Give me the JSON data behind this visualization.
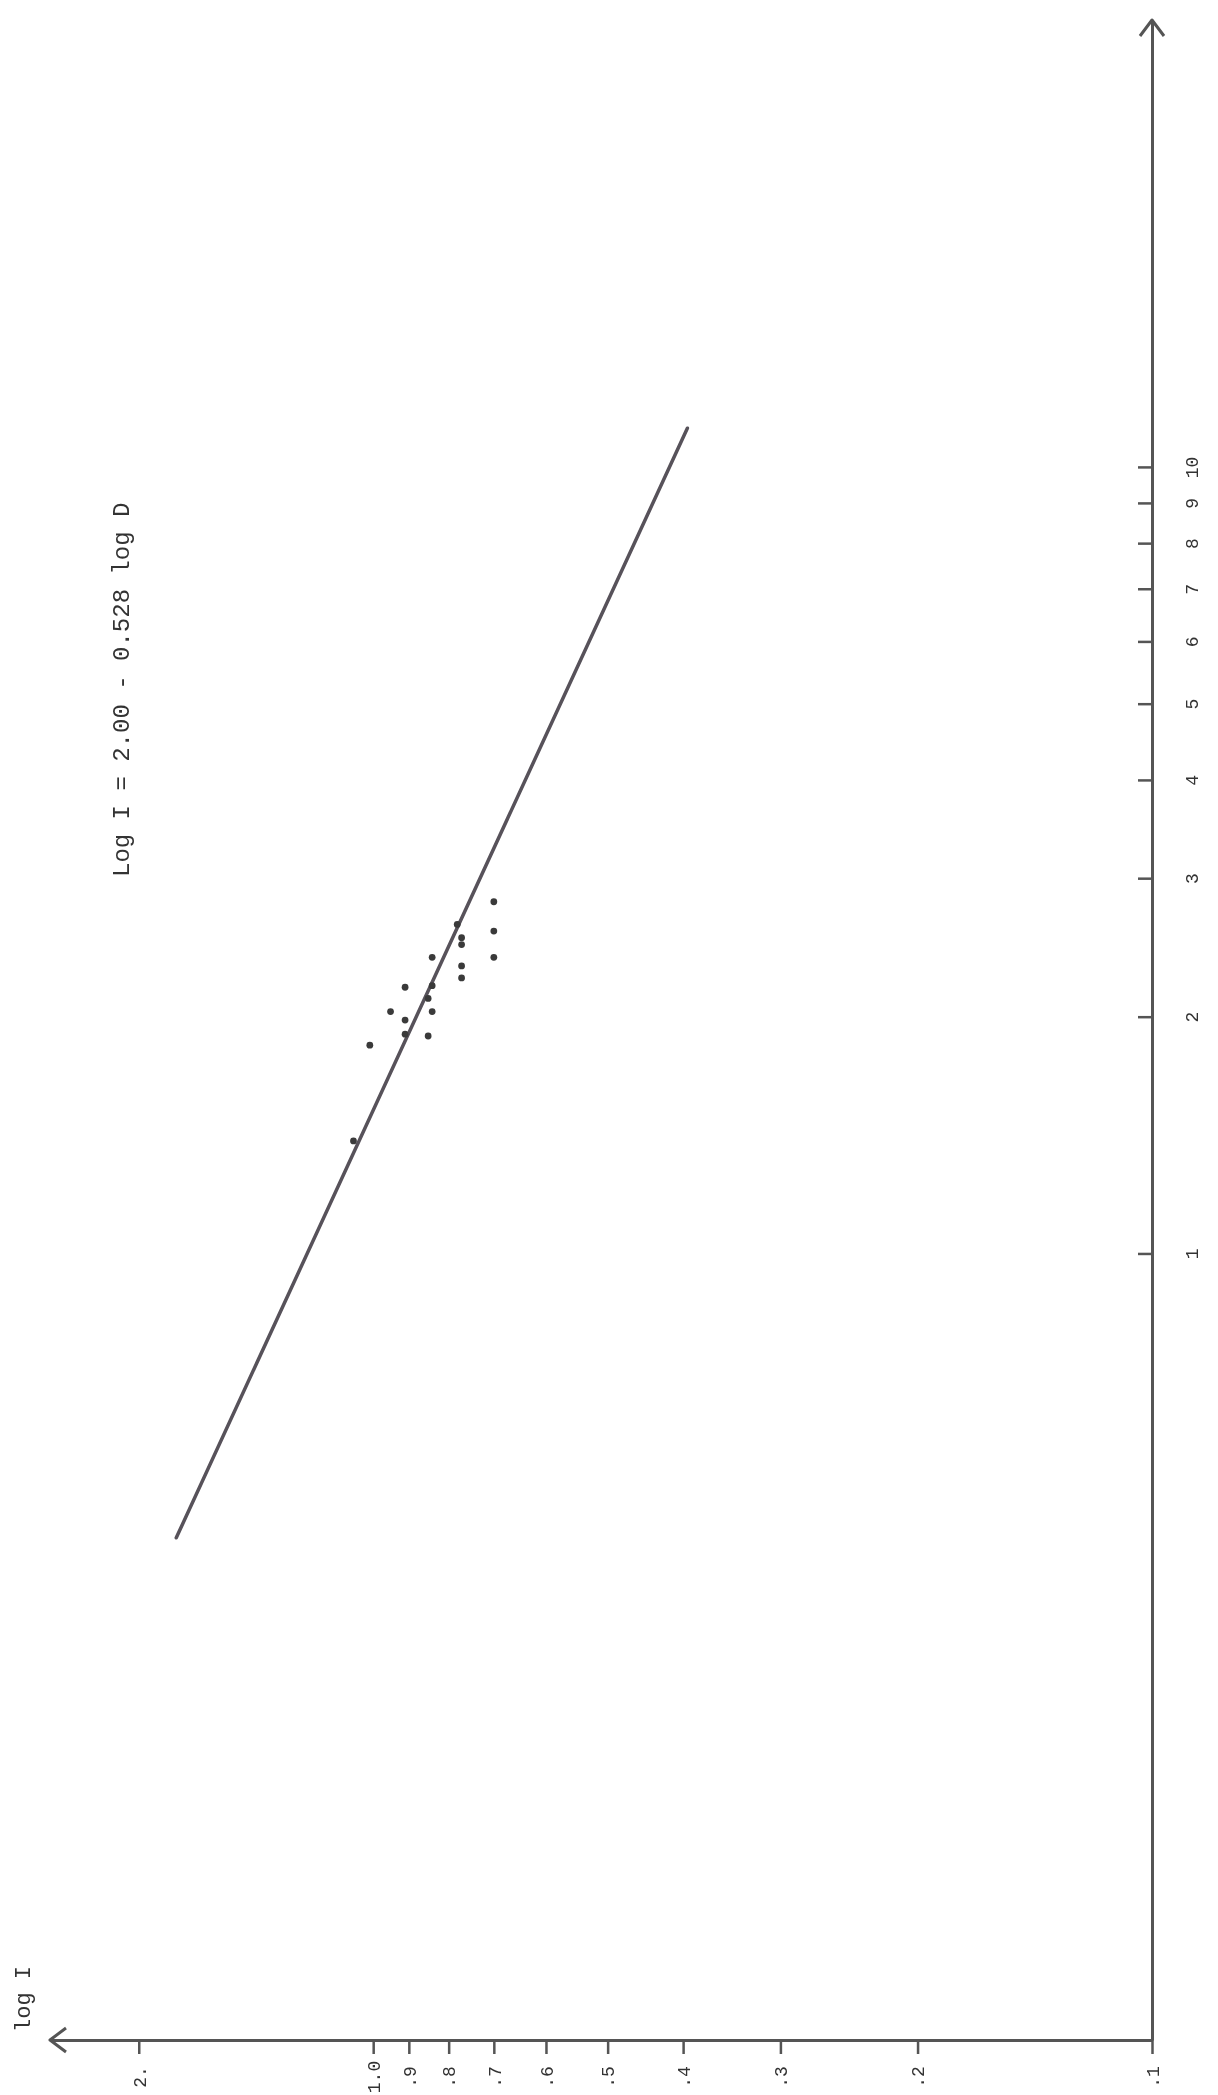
{
  "chart_data": {
    "type": "scatter",
    "annotations": [
      "Log I = 2.00 - 0.528 log D",
      "log I"
    ],
    "series": [
      {
        "color": "#3a3a3a",
        "x": [
          0.7,
          0.7,
          0.7,
          0.78,
          0.77,
          0.77,
          0.77,
          0.77,
          0.84,
          0.84,
          0.85,
          0.84,
          0.85,
          0.91,
          0.91,
          0.91,
          0.95,
          1.01,
          1.06
        ],
        "values": [
          2.8,
          2.57,
          2.38,
          2.62,
          2.52,
          2.47,
          2.32,
          2.24,
          2.38,
          2.19,
          2.11,
          2.03,
          1.89,
          2.18,
          1.98,
          1.9,
          2.03,
          1.84,
          1.39
        ]
      },
      {
        "type": "line",
        "color": "#57525a",
        "marker": "none",
        "x": [
          1.79,
          0.395
        ],
        "values": [
          0.435,
          11.2
        ]
      }
    ],
    "log": "xy",
    "xlim": [
      2.6,
      0.1
    ],
    "ylim": [
      0.1,
      37
    ],
    "xticks": [
      {
        "value": 2,
        "label": "2."
      },
      {
        "value": 1,
        "label": "1.0"
      },
      {
        "value": 0.9,
        "label": ".9"
      },
      {
        "value": 0.8,
        "label": ".8"
      },
      {
        "value": 0.7,
        "label": ".7"
      },
      {
        "value": 0.6,
        "label": ".6"
      },
      {
        "value": 0.5,
        "label": ".5"
      },
      {
        "value": 0.4,
        "label": ".4"
      },
      {
        "value": 0.3,
        "label": ".3"
      },
      {
        "value": 0.2,
        "label": ".2"
      },
      {
        "value": 0.1,
        "label": ".1"
      }
    ],
    "yticks": [
      1,
      2,
      3,
      4,
      5,
      6,
      7,
      8,
      9,
      10
    ],
    "marker": "circle"
  }
}
